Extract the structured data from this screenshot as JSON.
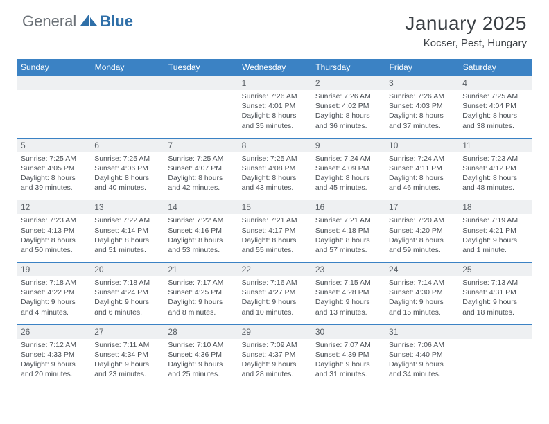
{
  "logo": {
    "part1": "General",
    "part2": "Blue"
  },
  "title": "January 2025",
  "location": "Kocser, Pest, Hungary",
  "colors": {
    "header_bg": "#3b82c4",
    "header_fg": "#ffffff",
    "daynum_bg": "#eef0f2",
    "daynum_fg": "#5a6066",
    "body_fg": "#4a4f55",
    "logo_gray": "#6a7076",
    "logo_blue": "#2f6fa8",
    "title_fg": "#3a3f44"
  },
  "day_names": [
    "Sunday",
    "Monday",
    "Tuesday",
    "Wednesday",
    "Thursday",
    "Friday",
    "Saturday"
  ],
  "weeks": [
    {
      "nums": [
        "",
        "",
        "",
        "1",
        "2",
        "3",
        "4"
      ],
      "cells": [
        null,
        null,
        null,
        {
          "sunrise": "7:26 AM",
          "sunset": "4:01 PM",
          "daylight": "8 hours and 35 minutes."
        },
        {
          "sunrise": "7:26 AM",
          "sunset": "4:02 PM",
          "daylight": "8 hours and 36 minutes."
        },
        {
          "sunrise": "7:26 AM",
          "sunset": "4:03 PM",
          "daylight": "8 hours and 37 minutes."
        },
        {
          "sunrise": "7:25 AM",
          "sunset": "4:04 PM",
          "daylight": "8 hours and 38 minutes."
        }
      ]
    },
    {
      "nums": [
        "5",
        "6",
        "7",
        "8",
        "9",
        "10",
        "11"
      ],
      "cells": [
        {
          "sunrise": "7:25 AM",
          "sunset": "4:05 PM",
          "daylight": "8 hours and 39 minutes."
        },
        {
          "sunrise": "7:25 AM",
          "sunset": "4:06 PM",
          "daylight": "8 hours and 40 minutes."
        },
        {
          "sunrise": "7:25 AM",
          "sunset": "4:07 PM",
          "daylight": "8 hours and 42 minutes."
        },
        {
          "sunrise": "7:25 AM",
          "sunset": "4:08 PM",
          "daylight": "8 hours and 43 minutes."
        },
        {
          "sunrise": "7:24 AM",
          "sunset": "4:09 PM",
          "daylight": "8 hours and 45 minutes."
        },
        {
          "sunrise": "7:24 AM",
          "sunset": "4:11 PM",
          "daylight": "8 hours and 46 minutes."
        },
        {
          "sunrise": "7:23 AM",
          "sunset": "4:12 PM",
          "daylight": "8 hours and 48 minutes."
        }
      ]
    },
    {
      "nums": [
        "12",
        "13",
        "14",
        "15",
        "16",
        "17",
        "18"
      ],
      "cells": [
        {
          "sunrise": "7:23 AM",
          "sunset": "4:13 PM",
          "daylight": "8 hours and 50 minutes."
        },
        {
          "sunrise": "7:22 AM",
          "sunset": "4:14 PM",
          "daylight": "8 hours and 51 minutes."
        },
        {
          "sunrise": "7:22 AM",
          "sunset": "4:16 PM",
          "daylight": "8 hours and 53 minutes."
        },
        {
          "sunrise": "7:21 AM",
          "sunset": "4:17 PM",
          "daylight": "8 hours and 55 minutes."
        },
        {
          "sunrise": "7:21 AM",
          "sunset": "4:18 PM",
          "daylight": "8 hours and 57 minutes."
        },
        {
          "sunrise": "7:20 AM",
          "sunset": "4:20 PM",
          "daylight": "8 hours and 59 minutes."
        },
        {
          "sunrise": "7:19 AM",
          "sunset": "4:21 PM",
          "daylight": "9 hours and 1 minute."
        }
      ]
    },
    {
      "nums": [
        "19",
        "20",
        "21",
        "22",
        "23",
        "24",
        "25"
      ],
      "cells": [
        {
          "sunrise": "7:18 AM",
          "sunset": "4:22 PM",
          "daylight": "9 hours and 4 minutes."
        },
        {
          "sunrise": "7:18 AM",
          "sunset": "4:24 PM",
          "daylight": "9 hours and 6 minutes."
        },
        {
          "sunrise": "7:17 AM",
          "sunset": "4:25 PM",
          "daylight": "9 hours and 8 minutes."
        },
        {
          "sunrise": "7:16 AM",
          "sunset": "4:27 PM",
          "daylight": "9 hours and 10 minutes."
        },
        {
          "sunrise": "7:15 AM",
          "sunset": "4:28 PM",
          "daylight": "9 hours and 13 minutes."
        },
        {
          "sunrise": "7:14 AM",
          "sunset": "4:30 PM",
          "daylight": "9 hours and 15 minutes."
        },
        {
          "sunrise": "7:13 AM",
          "sunset": "4:31 PM",
          "daylight": "9 hours and 18 minutes."
        }
      ]
    },
    {
      "nums": [
        "26",
        "27",
        "28",
        "29",
        "30",
        "31",
        ""
      ],
      "cells": [
        {
          "sunrise": "7:12 AM",
          "sunset": "4:33 PM",
          "daylight": "9 hours and 20 minutes."
        },
        {
          "sunrise": "7:11 AM",
          "sunset": "4:34 PM",
          "daylight": "9 hours and 23 minutes."
        },
        {
          "sunrise": "7:10 AM",
          "sunset": "4:36 PM",
          "daylight": "9 hours and 25 minutes."
        },
        {
          "sunrise": "7:09 AM",
          "sunset": "4:37 PM",
          "daylight": "9 hours and 28 minutes."
        },
        {
          "sunrise": "7:07 AM",
          "sunset": "4:39 PM",
          "daylight": "9 hours and 31 minutes."
        },
        {
          "sunrise": "7:06 AM",
          "sunset": "4:40 PM",
          "daylight": "9 hours and 34 minutes."
        },
        null
      ]
    }
  ],
  "labels": {
    "sunrise": "Sunrise:",
    "sunset": "Sunset:",
    "daylight": "Daylight:"
  }
}
